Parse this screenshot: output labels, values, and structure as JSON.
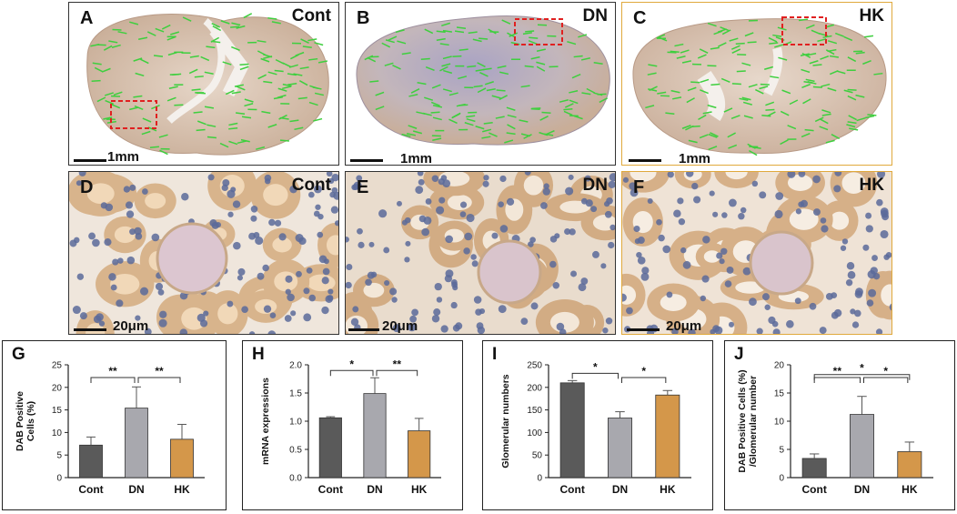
{
  "top_panels": [
    {
      "letter": "A",
      "tag": "Cont",
      "scale": "1mm"
    },
    {
      "letter": "B",
      "tag": "DN",
      "scale": "1mm"
    },
    {
      "letter": "C",
      "tag": "HK",
      "scale": "1mm"
    }
  ],
  "mid_panels": [
    {
      "letter": "D",
      "tag": "Cont",
      "scale": "20μm"
    },
    {
      "letter": "E",
      "tag": "DN",
      "scale": "20μm"
    },
    {
      "letter": "F",
      "tag": "HK",
      "scale": "20μm"
    }
  ],
  "colors": {
    "cont": "#5a5a5a",
    "dn": "#a8a8ae",
    "hk": "#d4974a",
    "roi": "#e02020",
    "arrow": "#3ecf3e"
  },
  "chart_data": [
    {
      "panel": "G",
      "type": "bar",
      "categories": [
        "Cont",
        "DN",
        "HK"
      ],
      "values": [
        7.2,
        15.4,
        8.5
      ],
      "errors": [
        1.8,
        4.7,
        3.3
      ],
      "ylabel_lines": [
        "DAB Positive",
        "Cells (%)"
      ],
      "ylim": [
        0,
        25
      ],
      "yticks": [
        0,
        5,
        10,
        15,
        20,
        25
      ],
      "sig": [
        {
          "from": 0,
          "to": 1,
          "label": "**"
        },
        {
          "from": 1,
          "to": 2,
          "label": "**"
        }
      ]
    },
    {
      "panel": "H",
      "type": "bar",
      "categories": [
        "Cont",
        "DN",
        "HK"
      ],
      "values": [
        1.06,
        1.49,
        0.83
      ],
      "errors": [
        0.02,
        0.28,
        0.22
      ],
      "ylabel_lines": [
        "mRNA expressions"
      ],
      "ylim": [
        0,
        2.0
      ],
      "yticks": [
        0,
        0.5,
        1.0,
        1.5,
        2.0
      ],
      "sig": [
        {
          "from": 0,
          "to": 1,
          "label": "*"
        },
        {
          "from": 1,
          "to": 2,
          "label": "**"
        }
      ]
    },
    {
      "panel": "I",
      "type": "bar",
      "categories": [
        "Cont",
        "DN",
        "HK"
      ],
      "values": [
        210,
        132,
        183
      ],
      "errors": [
        5,
        14,
        10
      ],
      "ylabel_lines": [
        "Glomerular numbers"
      ],
      "ylim": [
        0,
        250
      ],
      "yticks": [
        0,
        50,
        100,
        150,
        200,
        250
      ],
      "sig": [
        {
          "from": 0,
          "to": 1,
          "label": "*"
        },
        {
          "from": 1,
          "to": 2,
          "label": "*"
        }
      ]
    },
    {
      "panel": "J",
      "type": "bar",
      "categories": [
        "Cont",
        "DN",
        "HK"
      ],
      "values": [
        3.4,
        11.2,
        4.6
      ],
      "errors": [
        0.8,
        3.2,
        1.7
      ],
      "ylabel_lines": [
        "DAB Positive Cells (%)",
        "/Glomerular number"
      ],
      "ylim": [
        0,
        20
      ],
      "yticks": [
        0,
        5,
        10,
        15,
        20
      ],
      "sig": [
        {
          "from": 0,
          "to": 1,
          "label": "**"
        },
        {
          "from": 1,
          "to": 2,
          "label": "*"
        },
        {
          "from": 0,
          "to": 2,
          "label": "*"
        }
      ]
    }
  ]
}
